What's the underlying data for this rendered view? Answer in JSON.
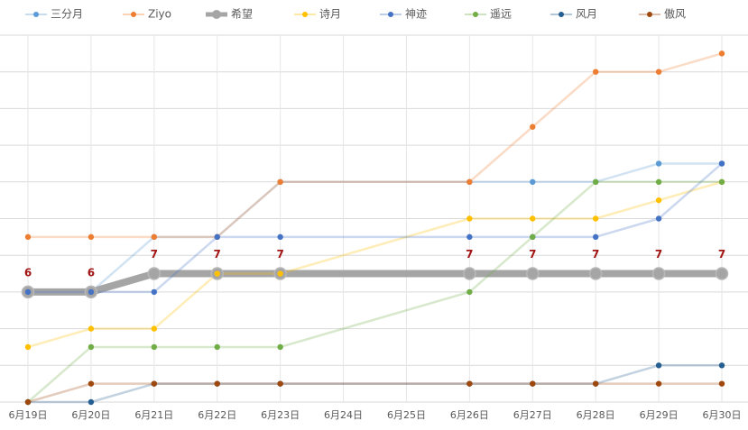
{
  "chart_data": {
    "type": "line",
    "categories": [
      "6月19日",
      "6月20日",
      "6月21日",
      "6月22日",
      "6月23日",
      "6月24日",
      "6月25日",
      "6月26日",
      "6月27日",
      "6月28日",
      "6月29日",
      "6月30日"
    ],
    "series": [
      {
        "name": "三分月",
        "color": "#5b9bd5",
        "values": [
          6,
          6,
          9,
          9,
          12,
          null,
          null,
          12,
          12,
          12,
          13,
          13
        ]
      },
      {
        "name": "Ziyo",
        "color": "#ed7d31",
        "values": [
          9,
          9,
          9,
          9,
          12,
          null,
          null,
          12,
          15,
          18,
          18,
          19
        ]
      },
      {
        "name": "希望",
        "color": "#a5a5a5",
        "highlight": true,
        "data_labels": true,
        "values": [
          6,
          6,
          7,
          7,
          7,
          null,
          null,
          7,
          7,
          7,
          7,
          7
        ]
      },
      {
        "name": "诗月",
        "color": "#ffc000",
        "values": [
          3,
          4,
          4,
          7,
          7,
          null,
          null,
          10,
          10,
          10,
          11,
          12
        ]
      },
      {
        "name": "神迹",
        "color": "#4472c4",
        "values": [
          6,
          6,
          6,
          9,
          9,
          null,
          null,
          9,
          9,
          9,
          10,
          13
        ]
      },
      {
        "name": "遥远",
        "color": "#70ad47",
        "values": [
          0,
          3,
          3,
          3,
          3,
          null,
          null,
          6,
          9,
          12,
          12,
          12
        ]
      },
      {
        "name": "风月",
        "color": "#255e91",
        "values": [
          0,
          0,
          1,
          1,
          1,
          null,
          null,
          1,
          1,
          1,
          2,
          2
        ]
      },
      {
        "name": "傲风",
        "color": "#9e480e",
        "values": [
          0,
          1,
          1,
          1,
          1,
          null,
          null,
          1,
          1,
          1,
          1,
          1
        ]
      }
    ],
    "ylim": [
      0,
      20
    ],
    "yticks": [
      0,
      2,
      4,
      6,
      8,
      10,
      12,
      14,
      16,
      18,
      20
    ],
    "ytick_labels": false,
    "grid": true,
    "gaps_spanned": true,
    "legend": "top"
  }
}
